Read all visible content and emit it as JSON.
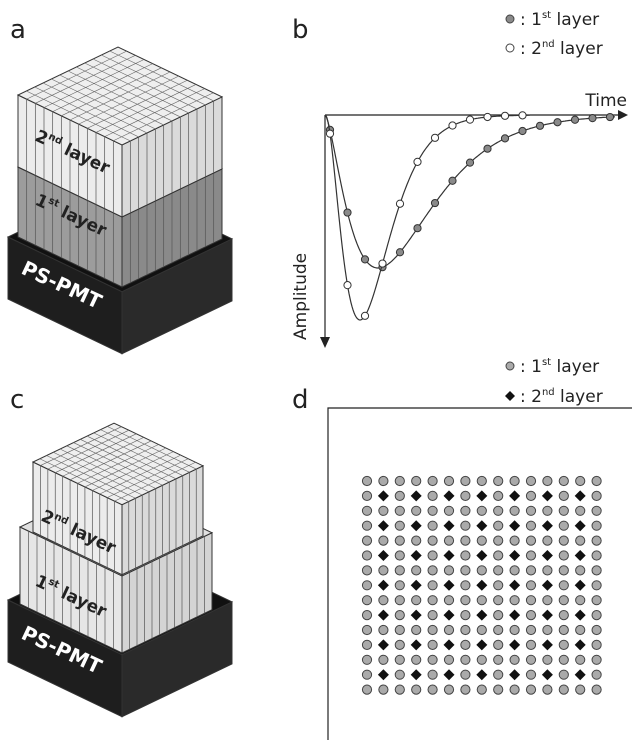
{
  "panels": {
    "a": {
      "label": "a",
      "upper_layer": {
        "num": "2",
        "sup": "nd",
        "text": " layer"
      },
      "lower_layer": {
        "num": "1",
        "sup": "st",
        "text": " layer"
      },
      "pmt": "PS-PMT"
    },
    "b": {
      "label": "b",
      "x_axis": "Time",
      "y_axis": "Amplitude",
      "legend": [
        {
          "prefix": ": 1",
          "sup": "st",
          "suffix": " layer"
        },
        {
          "prefix": ": 2",
          "sup": "nd",
          "suffix": " layer"
        }
      ]
    },
    "c": {
      "label": "c",
      "upper_layer": {
        "num": "2",
        "sup": "nd",
        "text": " layer"
      },
      "lower_layer": {
        "num": "1",
        "sup": "st",
        "text": " layer"
      },
      "pmt": "PS-PMT"
    },
    "d": {
      "label": "d",
      "legend": [
        {
          "prefix": ": 1",
          "sup": "st",
          "suffix": " layer"
        },
        {
          "prefix": ": 2",
          "sup": "nd",
          "suffix": " layer"
        }
      ]
    }
  }
}
